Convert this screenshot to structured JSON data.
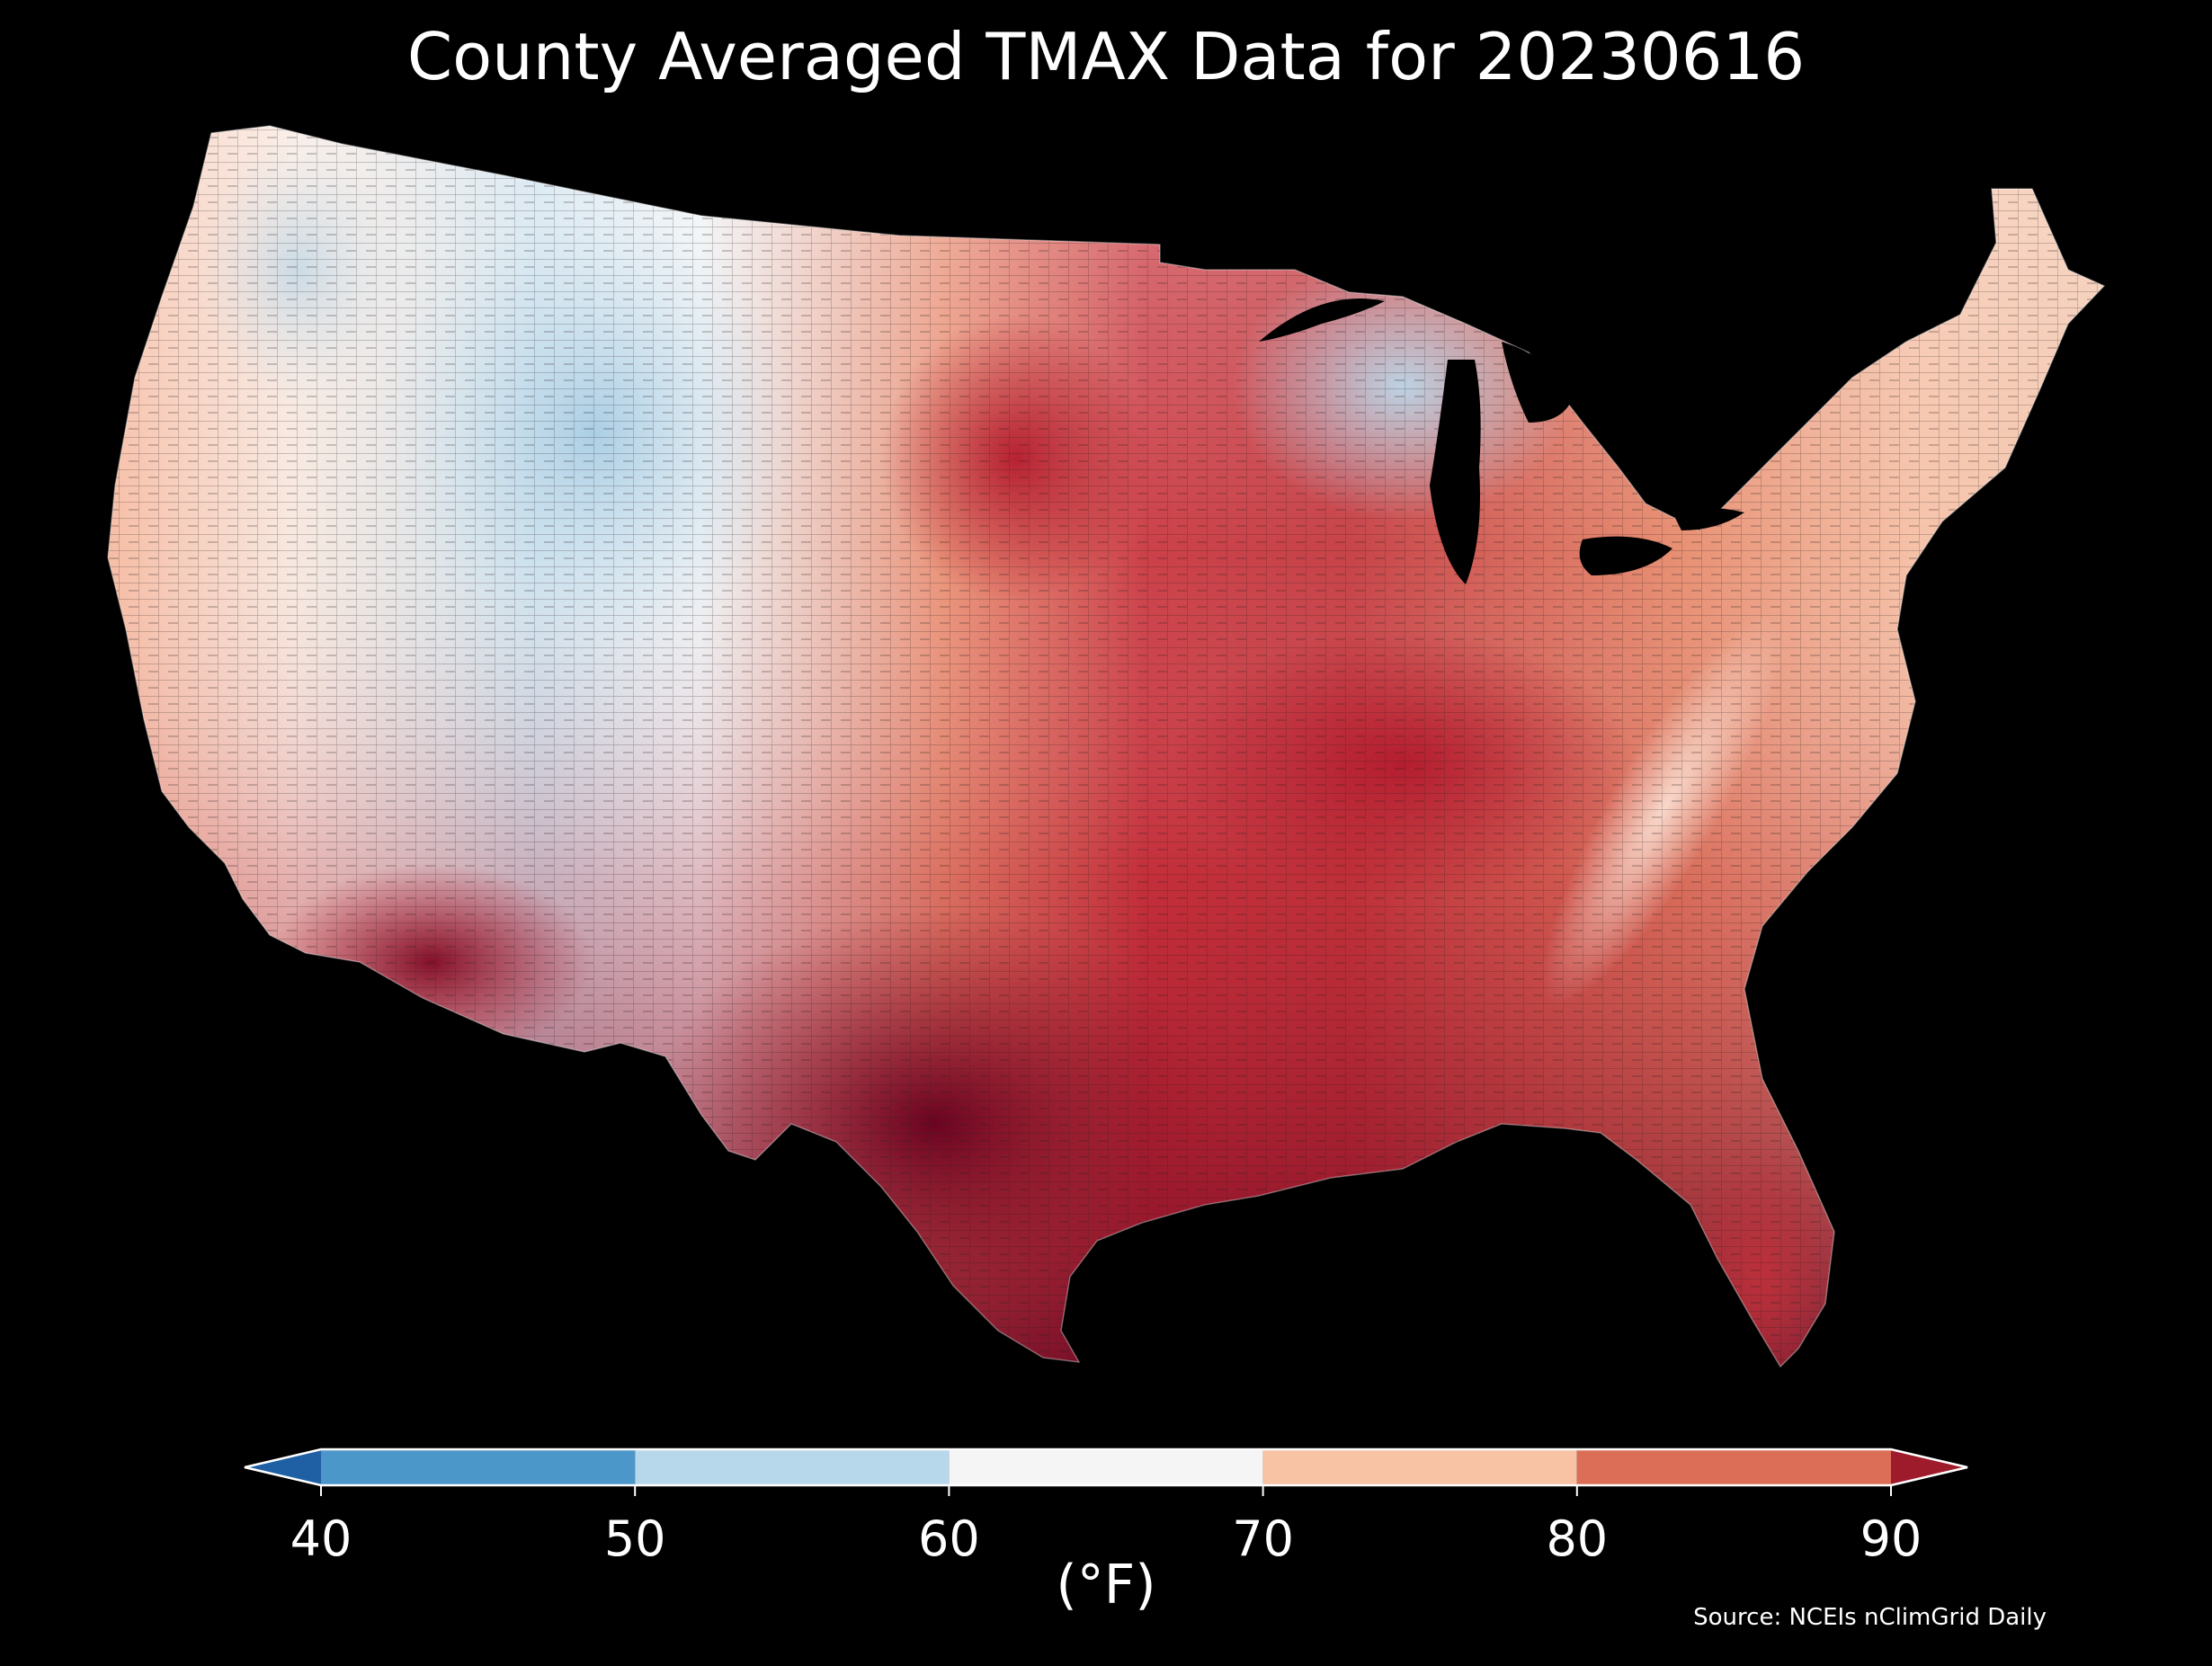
{
  "title": "County Averaged TMAX Data for 20230616",
  "colorbar": {
    "ticks": [
      "40",
      "50",
      "60",
      "70",
      "80",
      "90"
    ],
    "bins": [
      {
        "range": [
          40,
          50
        ],
        "color": "#4b97c9"
      },
      {
        "range": [
          50,
          60
        ],
        "color": "#b7d7ea"
      },
      {
        "range": [
          60,
          70
        ],
        "color": "#f5f5f5"
      },
      {
        "range": [
          70,
          80
        ],
        "color": "#f8c2a4"
      },
      {
        "range": [
          80,
          90
        ],
        "color": "#dc6e57"
      }
    ],
    "under_color": "#1f5fa3",
    "over_color": "#9d1b2b",
    "units": "(°F)"
  },
  "source": "Source: NCEIs nClimGrid Daily",
  "colors": {
    "background": "#000000",
    "county_border": "#3a2a2a"
  }
}
